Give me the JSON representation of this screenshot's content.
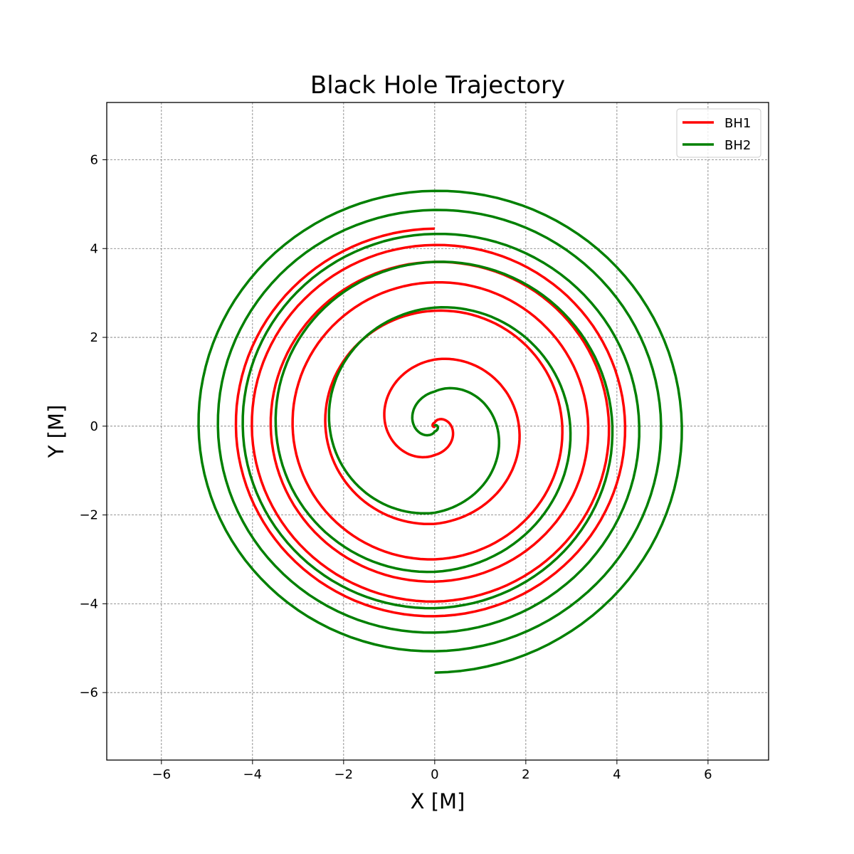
{
  "chart_data": {
    "type": "line",
    "title": "Black Hole Trajectory",
    "xlabel": "X [M]",
    "ylabel": "Y [M]",
    "xlim": [
      -7.2,
      7.33
    ],
    "ylim": [
      -7.52,
      7.29
    ],
    "xticks": [
      -6,
      -4,
      -2,
      0,
      2,
      4,
      6
    ],
    "yticks": [
      -6,
      -4,
      -2,
      0,
      2,
      4,
      6
    ],
    "xtick_labels": [
      "−6",
      "−4",
      "−2",
      "0",
      "2",
      "4",
      "6"
    ],
    "ytick_labels": [
      "−6",
      "−4",
      "−2",
      "0",
      "2",
      "4",
      "6"
    ],
    "grid": true,
    "legend_position": "top-right",
    "series": [
      {
        "name": "BH1",
        "color": "#ff0000",
        "start_angle_deg": 90,
        "direction": "counterclockwise",
        "half_turn_radii": [
          4.45,
          4.28,
          4.08,
          3.95,
          3.7,
          3.5,
          3.24,
          3.0,
          2.6,
          2.2,
          1.5,
          0.65,
          0.08,
          0.0
        ]
      },
      {
        "name": "BH2",
        "color": "#008000",
        "start_angle_deg": 270,
        "direction": "counterclockwise",
        "half_turn_radii": [
          5.55,
          5.3,
          5.07,
          4.87,
          4.65,
          4.33,
          4.1,
          3.7,
          3.28,
          2.67,
          1.95,
          0.78,
          0.12,
          0.0
        ]
      }
    ]
  }
}
